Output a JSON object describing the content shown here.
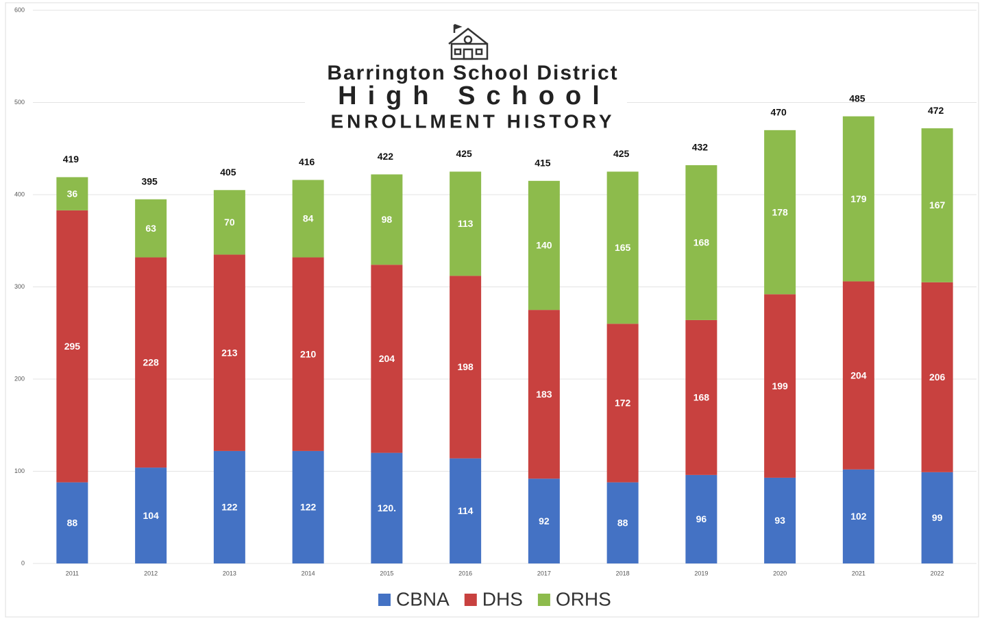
{
  "chart_data": {
    "type": "stacked_bar",
    "title": [
      "Barrington School District",
      "High School",
      "ENROLLMENT HISTORY"
    ],
    "categories": [
      "2011",
      "2012",
      "2013",
      "2014",
      "2015",
      "2016",
      "2017",
      "2018",
      "2019",
      "2020",
      "2021",
      "2022"
    ],
    "series": [
      {
        "name": "CBNA",
        "color": "#4472c4",
        "values": [
          88,
          104,
          122,
          122,
          120,
          114,
          92,
          88,
          96,
          93,
          102,
          99
        ],
        "value_labels": [
          "88",
          "104",
          "122",
          "122",
          "120.",
          "114",
          "92",
          "88",
          "96",
          "93",
          "102",
          "99"
        ]
      },
      {
        "name": "DHS",
        "color": "#c8413f",
        "values": [
          295,
          228,
          213,
          210,
          204,
          198,
          183,
          172,
          168,
          199,
          204,
          206
        ]
      },
      {
        "name": "ORHS",
        "color": "#8dbb4c",
        "values": [
          36,
          63,
          70,
          84,
          98,
          113,
          140,
          165,
          168,
          178,
          179,
          167
        ]
      }
    ],
    "totals": [
      419,
      395,
      405,
      416,
      422,
      425,
      415,
      425,
      432,
      470,
      485,
      472
    ],
    "ylim": [
      0,
      600
    ],
    "yticks": [
      0,
      100,
      200,
      300,
      400,
      500,
      600
    ],
    "grid": true,
    "legend": "bottom"
  }
}
